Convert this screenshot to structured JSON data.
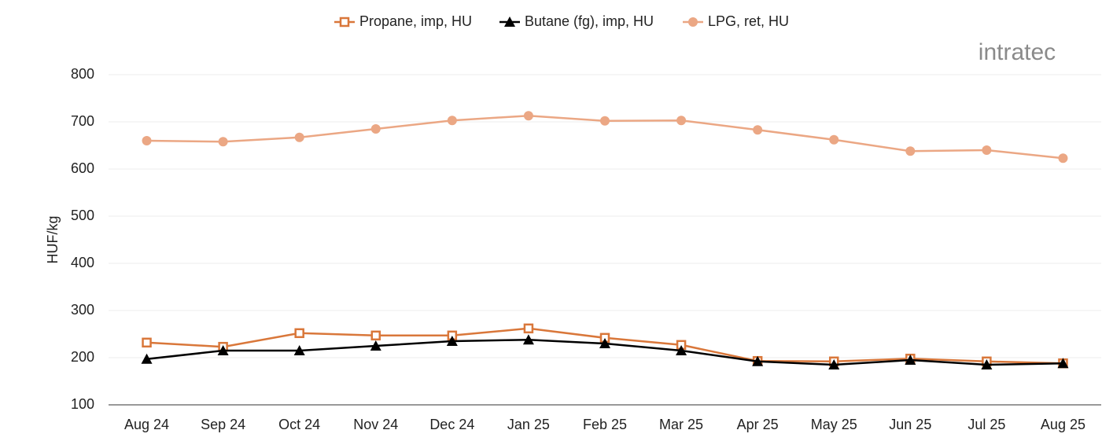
{
  "logo": "intratec",
  "chart_data": {
    "type": "line",
    "y_label": "HUF/kg",
    "categories": [
      "Aug 24",
      "Sep 24",
      "Oct 24",
      "Nov 24",
      "Dec 24",
      "Jan 25",
      "Feb 25",
      "Mar 25",
      "Apr 25",
      "May 25",
      "Jun 25",
      "Jul 25",
      "Aug 25"
    ],
    "series": [
      {
        "name": "Propane, imp, HU",
        "color": "#d9773a",
        "marker": "square-open",
        "values": [
          232,
          223,
          252,
          247,
          247,
          262,
          242,
          227,
          193,
          192,
          198,
          192,
          188
        ]
      },
      {
        "name": "Butane (fg), imp, HU",
        "color": "#000000",
        "marker": "triangle",
        "values": [
          197,
          215,
          215,
          225,
          235,
          238,
          230,
          215,
          192,
          185,
          195,
          185,
          188
        ]
      },
      {
        "name": "LPG, ret, HU",
        "color": "#eba784",
        "marker": "circle",
        "values": [
          660,
          658,
          667,
          685,
          703,
          713,
          702,
          703,
          683,
          662,
          638,
          640,
          623
        ]
      }
    ],
    "ylim": [
      100,
      800
    ],
    "yticks": [
      100,
      200,
      300,
      400,
      500,
      600,
      700,
      800
    ],
    "grid": true,
    "legend": "top"
  }
}
